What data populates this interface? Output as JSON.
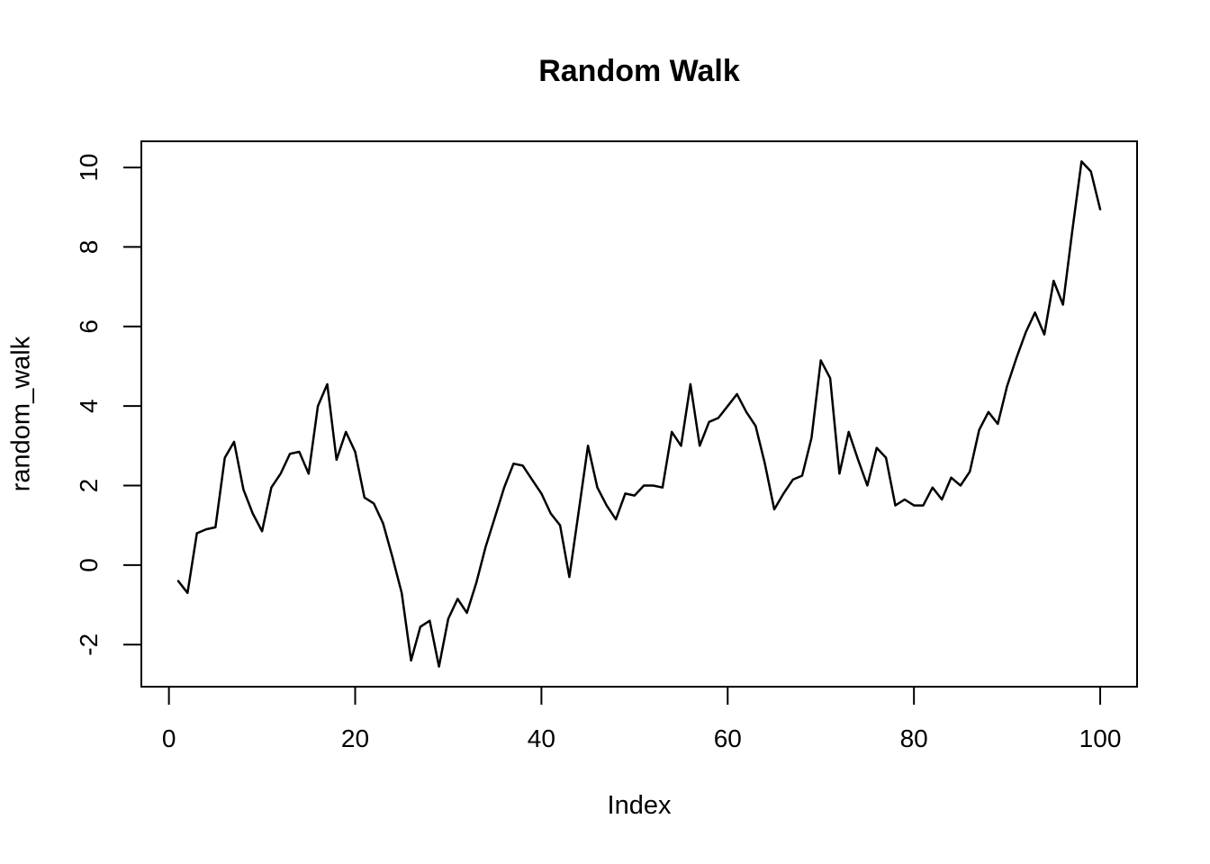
{
  "chart_data": {
    "type": "line",
    "title": "Random Walk",
    "xlabel": "Index",
    "ylabel": "random_walk",
    "x_start": 1,
    "series": [
      {
        "name": "random_walk",
        "values": [
          -0.4,
          -0.7,
          0.8,
          0.9,
          0.95,
          2.7,
          3.1,
          1.9,
          1.3,
          0.85,
          1.95,
          2.3,
          2.8,
          2.85,
          2.3,
          4.0,
          4.55,
          2.65,
          3.35,
          2.85,
          1.7,
          1.55,
          1.05,
          0.2,
          -0.7,
          -2.4,
          -1.55,
          -1.4,
          -2.55,
          -1.35,
          -0.85,
          -1.2,
          -0.45,
          0.45,
          1.2,
          1.95,
          2.55,
          2.5,
          2.15,
          1.8,
          1.3,
          1.0,
          -0.3,
          1.35,
          3.0,
          1.95,
          1.5,
          1.15,
          1.8,
          1.75,
          2.0,
          2.0,
          1.95,
          3.35,
          3.0,
          4.55,
          3.0,
          3.6,
          3.7,
          4.0,
          4.3,
          3.85,
          3.5,
          2.55,
          1.4,
          1.8,
          2.15,
          2.25,
          3.2,
          5.15,
          4.7,
          2.3,
          3.35,
          2.65,
          2.0,
          2.95,
          2.7,
          1.5,
          1.65,
          1.5,
          1.5,
          1.95,
          1.65,
          2.2,
          2.0,
          2.35,
          3.4,
          3.85,
          3.55,
          4.5,
          5.2,
          5.85,
          6.35,
          5.8,
          7.15,
          6.55,
          8.4,
          10.15,
          9.9,
          8.95
        ]
      }
    ],
    "x_ticks": [
      0,
      20,
      40,
      60,
      80,
      100
    ],
    "y_ticks": [
      -2,
      0,
      2,
      4,
      6,
      8,
      10
    ],
    "xlim": [
      1,
      100
    ],
    "ylim": [
      -2.55,
      10.15
    ],
    "grid": false,
    "legend": false,
    "line_color": "#000000",
    "axis_color": "#000000",
    "background": "#ffffff"
  }
}
